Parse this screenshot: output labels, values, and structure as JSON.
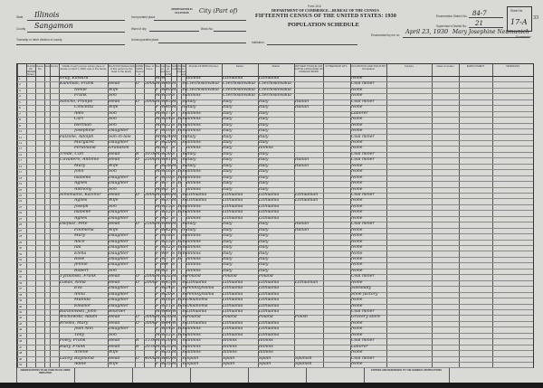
{
  "header": {
    "form_no": "Form 15-6",
    "department": "DEPARTMENT OF COMMERCE—BUREAU OF THE CENSUS",
    "title": "FIFTEENTH CENSUS OF THE UNITED STATES: 1930",
    "subtitle": "POPULATION SCHEDULE",
    "state_label": "State",
    "state_value": "Illinois",
    "county_label": "County",
    "county_value": "Sangamon",
    "township_label": "Township or other division of county",
    "incorporated_label": "Incorporated place",
    "incorporated_stamp": "SPRINGFIELD ILLINOIS",
    "incorporated_value": "City (Part of)",
    "ward_label": "Ward of city",
    "block_label": "Block No.",
    "unincorporated_label": "Unincorporated place",
    "institution_label": "Institution",
    "enum_district_label": "Enumeration District No.",
    "enum_district_value": "84-7",
    "supervisor_label": "Supervisor's District No.",
    "supervisor_value": "21",
    "sheet_label": "Sheet No.",
    "sheet_value": "17-A",
    "page_stamp": "33",
    "enumerated_label": "Enumerated by me on",
    "enumerated_date": "April 23, 1930",
    "enumerator": "Mary Josephine Neumunich",
    "enumerator_suffix": "Enumerator"
  },
  "columns": [
    {
      "key": "line",
      "label": ""
    },
    {
      "key": "street",
      "label": "PLACE OF ABODE Street"
    },
    {
      "key": "house",
      "label": "House No."
    },
    {
      "key": "dwelling",
      "label": "Dwelling"
    },
    {
      "key": "family",
      "label": "Family"
    },
    {
      "key": "name",
      "label": "NAME of each person whose place of abode on April 1, 1930, was in this family"
    },
    {
      "key": "relation",
      "label": "RELATION Relationship of this person to the head of the family"
    },
    {
      "key": "home",
      "label": "HOME DATA Owned or rented"
    },
    {
      "key": "value",
      "label": "Value of home"
    },
    {
      "key": "sex",
      "label": "Sex"
    },
    {
      "key": "color",
      "label": "Color or race"
    },
    {
      "key": "age",
      "label": "Age at last birthday"
    },
    {
      "key": "marital",
      "label": "Marital condition"
    },
    {
      "key": "school",
      "label": "EDUCATION Attended school"
    },
    {
      "key": "read",
      "label": "Able to read and write"
    },
    {
      "key": "birth_person",
      "label": "PLACE OF BIRTH Person"
    },
    {
      "key": "birth_father",
      "label": "Father"
    },
    {
      "key": "birth_mother",
      "label": "Mother"
    },
    {
      "key": "language",
      "label": "MOTHER TONGUE (OR NATIVE LANGUAGE) OF FOREIGN BORN"
    },
    {
      "key": "citizenship",
      "label": "CITIZENSHIP, ETC."
    },
    {
      "key": "occupation",
      "label": "OCCUPATION AND INDUSTRY Occupation"
    },
    {
      "key": "industry",
      "label": "Industry"
    },
    {
      "key": "class",
      "label": "Class of worker"
    },
    {
      "key": "employment",
      "label": "EMPLOYMENT"
    },
    {
      "key": "veterans",
      "label": "VETERANS"
    }
  ],
  "rows": [
    {
      "name": "Gray, Edward",
      "relation": "",
      "sex": "M",
      "color": "W",
      "age": "",
      "marital": "",
      "school": "",
      "read": "",
      "birth_person": "Illinois",
      "birth_father": "Lithuania",
      "birth_mother": "Lithuania",
      "occupation": "None"
    },
    {
      "name": "Kuhlman, Frank",
      "relation": "Head",
      "home": "O",
      "value": "5000",
      "sex": "M",
      "color": "W",
      "age": "48",
      "marital": "M",
      "read": "Yes",
      "birth_person": "Czechoslovakia",
      "birth_father": "Czechoslovakia",
      "birth_mother": "Czechoslovakia",
      "occupation": "Coal miner"
    },
    {
      "name": "Nellie",
      "relation": "Wife",
      "sex": "F",
      "color": "W",
      "age": "40",
      "marital": "M",
      "read": "Yes",
      "birth_person": "Czechoslovakia",
      "birth_father": "Czechoslovakia",
      "birth_mother": "Czechoslovakia",
      "occupation": "None"
    },
    {
      "name": "Frank",
      "relation": "Son",
      "sex": "M",
      "color": "W",
      "age": "19",
      "marital": "S",
      "read": "Yes",
      "birth_person": "Illinois",
      "birth_father": "Czechoslovakia",
      "birth_mother": "Czechoslovakia",
      "occupation": "None"
    },
    {
      "name": "Sancho, Philipo",
      "relation": "Head",
      "home": "O",
      "value": "3000",
      "sex": "M",
      "color": "W",
      "age": "45",
      "marital": "M",
      "read": "Yes",
      "birth_person": "Italy",
      "birth_father": "Italy",
      "birth_mother": "Italy",
      "language": "Italian",
      "occupation": "Coal miner"
    },
    {
      "name": "Concetta",
      "relation": "Wife",
      "sex": "F",
      "color": "W",
      "age": "40",
      "marital": "M",
      "read": "No",
      "birth_person": "Italy",
      "birth_father": "Italy",
      "birth_mother": "Italy",
      "language": "Italian",
      "occupation": "None"
    },
    {
      "name": "Aldo",
      "relation": "Son",
      "sex": "M",
      "color": "W",
      "age": "17",
      "marital": "S",
      "read": "Yes",
      "birth_person": "Illinois",
      "birth_father": "Italy",
      "birth_mother": "Italy",
      "occupation": "Laborer"
    },
    {
      "name": "Carl",
      "relation": "Son",
      "sex": "M",
      "color": "W",
      "age": "14",
      "marital": "S",
      "school": "Yes",
      "read": "Yes",
      "birth_person": "Illinois",
      "birth_father": "Italy",
      "birth_mother": "Italy",
      "occupation": "None"
    },
    {
      "name": "Herman",
      "relation": "Son",
      "sex": "M",
      "color": "W",
      "age": "12",
      "marital": "S",
      "school": "Yes",
      "read": "Yes",
      "birth_person": "Illinois",
      "birth_father": "Italy",
      "birth_mother": "Italy",
      "occupation": "None"
    },
    {
      "name": "Josephine",
      "relation": "Daughter",
      "sex": "F",
      "color": "W",
      "age": "10",
      "marital": "S",
      "school": "Yes",
      "read": "Yes",
      "birth_person": "Illinois",
      "birth_father": "Italy",
      "birth_mother": "Italy",
      "occupation": "None"
    },
    {
      "name": "Falzone, Adolph",
      "relation": "Son-in-law",
      "sex": "M",
      "color": "W",
      "age": "24",
      "marital": "M",
      "read": "Yes",
      "birth_person": "Italy",
      "birth_father": "Italy",
      "birth_mother": "Italy",
      "occupation": "Coal miner"
    },
    {
      "name": "Margaret",
      "relation": "Daughter",
      "sex": "F",
      "color": "W",
      "age": "20",
      "marital": "M",
      "read": "Yes",
      "birth_person": "Illinois",
      "birth_father": "Italy",
      "birth_mother": "Italy",
      "occupation": "None"
    },
    {
      "name": "Ferdinand",
      "relation": "Grandson",
      "sex": "M",
      "color": "W",
      "age": "1",
      "marital": "S",
      "birth_person": "Illinois",
      "birth_father": "Italy",
      "birth_mother": "Illinois",
      "occupation": "None"
    },
    {
      "name": "Trede, Carl",
      "relation": "Head",
      "home": "R",
      "value": "10.00",
      "sex": "M",
      "color": "W",
      "age": "50",
      "marital": "S",
      "read": "Yes",
      "birth_person": "Italy",
      "birth_father": "Italy",
      "birth_mother": "Italy",
      "occupation": "Coal miner"
    },
    {
      "name": "Cavallero, Antonio",
      "relation": "Head",
      "home": "O",
      "value": "2500",
      "sex": "M",
      "color": "W",
      "age": "41",
      "marital": "M",
      "read": "Yes",
      "birth_person": "Italy",
      "birth_father": "Italy",
      "birth_mother": "Italy",
      "language": "Italian",
      "occupation": "Coal miner"
    },
    {
      "name": "Mary",
      "relation": "Wife",
      "sex": "F",
      "color": "W",
      "age": "38",
      "marital": "M",
      "read": "Yes",
      "birth_person": "Italy",
      "birth_father": "Italy",
      "birth_mother": "Italy",
      "language": "Italian",
      "occupation": "None"
    },
    {
      "name": "John",
      "relation": "Son",
      "sex": "M",
      "color": "W",
      "age": "16",
      "marital": "S",
      "school": "Yes",
      "read": "Yes",
      "birth_person": "Illinois",
      "birth_father": "Italy",
      "birth_mother": "Italy",
      "occupation": "None"
    },
    {
      "name": "Isabella",
      "relation": "Daughter",
      "sex": "F",
      "color": "W",
      "age": "10",
      "marital": "S",
      "school": "Yes",
      "read": "Yes",
      "birth_person": "Illinois",
      "birth_father": "Italy",
      "birth_mother": "Italy",
      "occupation": "None"
    },
    {
      "name": "Agnes",
      "relation": "Daughter",
      "sex": "F",
      "color": "W",
      "age": "7",
      "marital": "S",
      "school": "Yes",
      "birth_person": "Illinois",
      "birth_father": "Italy",
      "birth_mother": "Italy",
      "occupation": "None"
    },
    {
      "name": "Anthony",
      "relation": "Son",
      "sex": "M",
      "color": "W",
      "age": "3",
      "marital": "S",
      "birth_person": "Illinois",
      "birth_father": "Italy",
      "birth_mother": "Italy",
      "occupation": "None"
    },
    {
      "name": "Simonaitis, Kazimir",
      "relation": "Head",
      "home": "O",
      "value": "3000",
      "sex": "M",
      "color": "W",
      "age": "40",
      "marital": "M",
      "read": "Yes",
      "birth_person": "Lithuania",
      "birth_father": "Lithuania",
      "birth_mother": "Lithuania",
      "language": "Lithuanian",
      "occupation": "Coal miner"
    },
    {
      "name": "Agnes",
      "relation": "Wife",
      "sex": "F",
      "color": "W",
      "age": "37",
      "marital": "M",
      "read": "Yes",
      "birth_person": "Lithuania",
      "birth_father": "Lithuania",
      "birth_mother": "Lithuania",
      "language": "Lithuanian",
      "occupation": "None"
    },
    {
      "name": "Joseph",
      "relation": "Son",
      "sex": "M",
      "color": "W",
      "age": "15",
      "marital": "S",
      "school": "Yes",
      "read": "Yes",
      "birth_person": "Illinois",
      "birth_father": "Lithuania",
      "birth_mother": "Lithuania",
      "occupation": "None"
    },
    {
      "name": "Isabelle",
      "relation": "Daughter",
      "sex": "F",
      "color": "W",
      "age": "12",
      "marital": "S",
      "school": "Yes",
      "read": "Yes",
      "birth_person": "Illinois",
      "birth_father": "Lithuania",
      "birth_mother": "Lithuania",
      "occupation": "None"
    },
    {
      "name": "Agnes",
      "relation": "Daughter",
      "sex": "F",
      "color": "W",
      "age": "5",
      "marital": "S",
      "birth_person": "Illinois",
      "birth_father": "Lithuania",
      "birth_mother": "Lithuania",
      "occupation": "None"
    },
    {
      "name": "Dalpiaz, Pete",
      "relation": "Head",
      "home": "O",
      "value": "2500",
      "sex": "M",
      "color": "W",
      "age": "48",
      "marital": "M",
      "read": "Yes",
      "birth_person": "Italy",
      "birth_father": "Italy",
      "birth_mother": "Italy",
      "language": "Italian",
      "occupation": "Coal miner"
    },
    {
      "name": "Filomena",
      "relation": "Wife",
      "sex": "F",
      "color": "W",
      "age": "42",
      "marital": "M",
      "read": "No",
      "birth_person": "Italy",
      "birth_father": "Italy",
      "birth_mother": "Italy",
      "language": "Italian",
      "occupation": "None"
    },
    {
      "name": "Mary",
      "relation": "Daughter",
      "sex": "F",
      "color": "W",
      "age": "18",
      "marital": "S",
      "read": "Yes",
      "birth_person": "Illinois",
      "birth_father": "Italy",
      "birth_mother": "Italy",
      "occupation": "None"
    },
    {
      "name": "Alice",
      "relation": "Daughter",
      "sex": "F",
      "color": "W",
      "age": "15",
      "marital": "S",
      "school": "Yes",
      "read": "Yes",
      "birth_person": "Illinois",
      "birth_father": "Italy",
      "birth_mother": "Italy",
      "occupation": "None"
    },
    {
      "name": "Ida",
      "relation": "Daughter",
      "sex": "F",
      "color": "W",
      "age": "12",
      "marital": "S",
      "school": "Yes",
      "read": "Yes",
      "birth_person": "Illinois",
      "birth_father": "Italy",
      "birth_mother": "Italy",
      "occupation": "None"
    },
    {
      "name": "Elena",
      "relation": "Daughter",
      "sex": "F",
      "color": "W",
      "age": "9",
      "marital": "S",
      "school": "Yes",
      "read": "Yes",
      "birth_person": "Illinois",
      "birth_father": "Italy",
      "birth_mother": "Italy",
      "occupation": "None"
    },
    {
      "name": "Rose",
      "relation": "Daughter",
      "sex": "F",
      "color": "W",
      "age": "7",
      "marital": "S",
      "school": "Yes",
      "birth_person": "Illinois",
      "birth_father": "Italy",
      "birth_mother": "Italy",
      "occupation": "None"
    },
    {
      "name": "Jennie",
      "relation": "Daughter",
      "sex": "F",
      "color": "W",
      "age": "4",
      "marital": "S",
      "birth_person": "Illinois",
      "birth_father": "Italy",
      "birth_mother": "Italy",
      "occupation": "None"
    },
    {
      "name": "Robert",
      "relation": "Son",
      "sex": "M",
      "color": "W",
      "age": "1",
      "marital": "S",
      "birth_person": "Illinois",
      "birth_father": "Italy",
      "birth_mother": "Italy",
      "occupation": "None"
    },
    {
      "name": "Tyzbanski, Frank",
      "relation": "Head",
      "home": "O",
      "value": "2000",
      "sex": "M",
      "color": "W",
      "age": "52",
      "marital": "M",
      "read": "Yes",
      "birth_person": "Poland",
      "birth_father": "Poland",
      "birth_mother": "Poland",
      "occupation": "Coal miner"
    },
    {
      "name": "Lukas, Anna",
      "relation": "Head",
      "home": "O",
      "value": "2000",
      "sex": "F",
      "color": "W",
      "age": "45",
      "marital": "Wd",
      "read": "Yes",
      "birth_person": "Lithuania",
      "birth_father": "Lithuania",
      "birth_mother": "Lithuania",
      "language": "Lithuanian",
      "occupation": "None"
    },
    {
      "name": "Eva",
      "relation": "Daughter",
      "sex": "F",
      "color": "W",
      "age": "24",
      "marital": "S",
      "read": "Yes",
      "birth_person": "Pennsylvania",
      "birth_father": "Lithuania",
      "birth_mother": "Lithuania",
      "occupation": "Saleslady"
    },
    {
      "name": "Anna",
      "relation": "Daughter",
      "sex": "F",
      "color": "W",
      "age": "20",
      "marital": "S",
      "read": "Yes",
      "birth_person": "Pennsylvania",
      "birth_father": "Lithuania",
      "birth_mother": "Lithuania",
      "occupation": "Shoe factory"
    },
    {
      "name": "Matilda",
      "relation": "Daughter",
      "sex": "F",
      "color": "W",
      "age": "16",
      "marital": "S",
      "school": "Yes",
      "read": "Yes",
      "birth_person": "Oklahoma",
      "birth_father": "Lithuania",
      "birth_mother": "Lithuania",
      "occupation": "None"
    },
    {
      "name": "Eleanor",
      "relation": "Daughter",
      "sex": "F",
      "color": "W",
      "age": "11",
      "marital": "S",
      "school": "Yes",
      "read": "Yes",
      "birth_person": "Oklahoma",
      "birth_father": "Lithuania",
      "birth_mother": "Lithuania",
      "occupation": "None"
    },
    {
      "name": "Baranowski, John",
      "relation": "Boarder",
      "sex": "M",
      "color": "W",
      "age": "48",
      "marital": "Wd",
      "read": "Yes",
      "birth_person": "Lithuania",
      "birth_father": "Lithuania",
      "birth_mother": "Lithuania",
      "occupation": "Coal miner"
    },
    {
      "name": "Wichowski, Adam",
      "relation": "Head",
      "home": "O",
      "value": "3000",
      "sex": "M",
      "color": "W",
      "age": "50",
      "marital": "M",
      "read": "Yes",
      "birth_person": "Poland",
      "birth_father": "Poland",
      "birth_mother": "Poland",
      "language": "Polish",
      "occupation": "Grocery store"
    },
    {
      "name": "Brooks, Mary",
      "relation": "Head",
      "home": "O",
      "value": "3000",
      "sex": "F",
      "color": "W",
      "age": "44",
      "marital": "Wd",
      "read": "Yes",
      "birth_person": "Lithuania",
      "birth_father": "Lithuania",
      "birth_mother": "Lithuania",
      "occupation": "None"
    },
    {
      "name": "Jean Ann",
      "relation": "Daughter",
      "sex": "F",
      "color": "W",
      "age": "14",
      "marital": "S",
      "school": "Yes",
      "read": "Yes",
      "birth_person": "Illinois",
      "birth_father": "Lithuania",
      "birth_mother": "Lithuania",
      "occupation": "None"
    },
    {
      "name": "Tony",
      "relation": "Son",
      "sex": "M",
      "color": "W",
      "age": "12",
      "marital": "S",
      "school": "Yes",
      "read": "Yes",
      "birth_person": "Illinois",
      "birth_father": "Lithuania",
      "birth_mother": "Lithuania",
      "occupation": "None"
    },
    {
      "name": "Foley, Frank",
      "relation": "Head",
      "home": "R",
      "value": "15.00",
      "sex": "M",
      "color": "W",
      "age": "30",
      "marital": "M",
      "read": "Yes",
      "birth_person": "Illinois",
      "birth_father": "Illinois",
      "birth_mother": "Illinois",
      "occupation": "Coal miner"
    },
    {
      "name": "Rudy, Frank",
      "relation": "Head",
      "home": "R",
      "value": "20.00",
      "sex": "M",
      "color": "W",
      "age": "35",
      "marital": "M",
      "read": "Yes",
      "birth_person": "Illinois",
      "birth_father": "Illinois",
      "birth_mother": "Illinois",
      "occupation": "Laborer"
    },
    {
      "name": "Arlene",
      "relation": "Wife",
      "sex": "F",
      "color": "W",
      "age": "31",
      "marital": "M",
      "read": "Yes",
      "birth_person": "Illinois",
      "birth_father": "Illinois",
      "birth_mother": "Illinois",
      "occupation": "None"
    },
    {
      "name": "Lacey, Raymond",
      "relation": "Head",
      "home": "O",
      "value": "4000",
      "sex": "M",
      "color": "W",
      "age": "40",
      "marital": "M",
      "read": "Yes",
      "birth_person": "Spain",
      "birth_father": "Spain",
      "birth_mother": "Spain",
      "language": "Spanish",
      "occupation": "Coal miner"
    },
    {
      "name": "Adele",
      "relation": "Wife",
      "sex": "F",
      "color": "W",
      "age": "35",
      "marital": "M",
      "read": "Yes",
      "birth_person": "Spain",
      "birth_father": "Spain",
      "birth_mother": "Spain",
      "language": "Spanish",
      "occupation": "None"
    }
  ],
  "footer": {
    "instructions": "ABBREVIATIONS TO BE USED IN COLUMNS INDICATED",
    "codes_title": "ENTRIES AND REFERENCE TO THE GENERAL INSTRUCTIONS"
  },
  "colors": {
    "paper": "#d9d9d6",
    "ink": "#1b1b1b",
    "border": "#1a1a1a"
  }
}
